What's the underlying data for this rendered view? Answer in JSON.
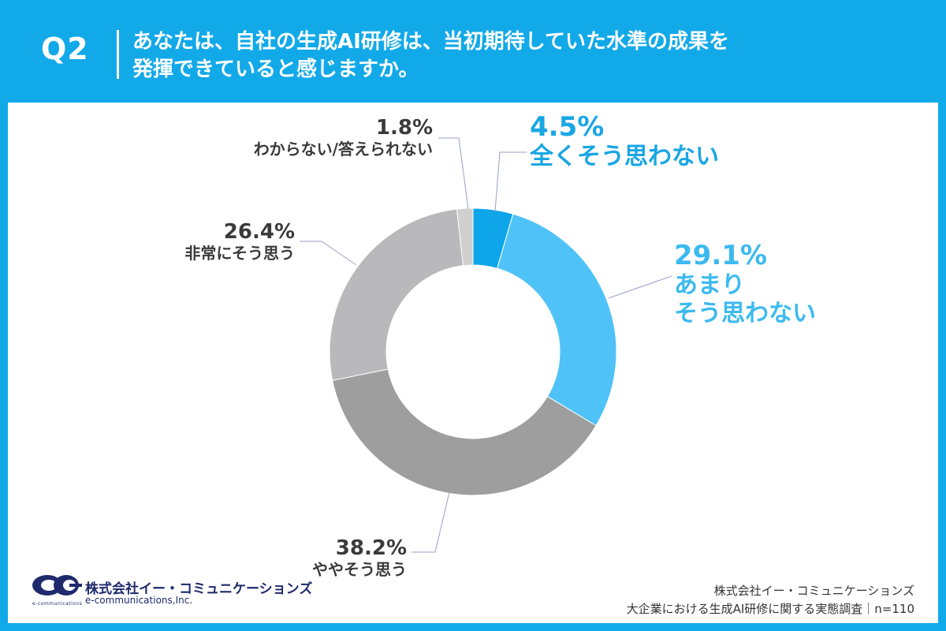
{
  "header": {
    "question_number": "Q2",
    "question_lines": [
      "あなたは、自社の生成AI研修は、当初期待していた水準の成果を",
      "発揮できていると感じますか。"
    ]
  },
  "chart_data": {
    "type": "donut",
    "start_angle_deg": 0,
    "direction": "clockwise",
    "slices": [
      {
        "label_lines": [
          "全くそう思わない"
        ],
        "value": 4.5,
        "value_label": "4.5%",
        "color": "#0ea5e9",
        "label_color": "#1aa6e4"
      },
      {
        "label_lines": [
          "あまり",
          "そう思わない"
        ],
        "value": 29.1,
        "value_label": "29.1%",
        "color": "#4fc3f7",
        "label_color": "#3cbaf0"
      },
      {
        "label_lines": [
          "ややそう思う"
        ],
        "value": 38.2,
        "value_label": "38.2%",
        "color": "#9e9e9e",
        "label_color": "#3a3a3a"
      },
      {
        "label_lines": [
          "非常にそう思う"
        ],
        "value": 26.4,
        "value_label": "26.4%",
        "color": "#b9b9bb",
        "label_color": "#3a3a3a"
      },
      {
        "label_lines": [
          "わからない/答えられない"
        ],
        "value": 1.8,
        "value_label": "1.8%",
        "color": "#cfcfcf",
        "label_color": "#3a3a3a"
      }
    ]
  },
  "logo": {
    "company_jp": "株式会社イー・コミュニケーションズ",
    "company_en": "e-communications,Inc.",
    "emblem_text": "e-communications"
  },
  "footer": {
    "company": "株式会社イー・コミュニケーションズ",
    "survey": "大企業における生成AI研修に関する実態調査｜n=110"
  }
}
